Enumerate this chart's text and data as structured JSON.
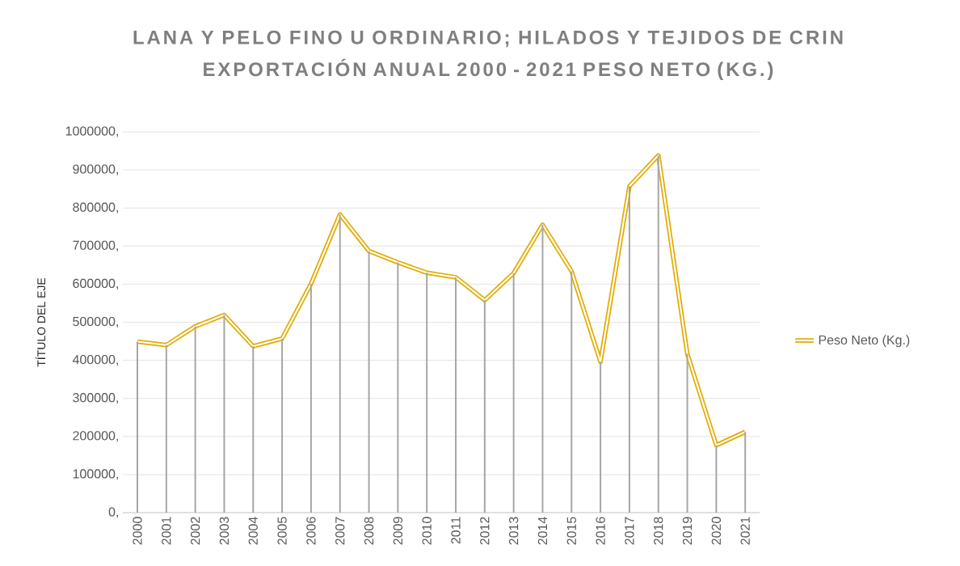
{
  "chart_data": {
    "type": "line",
    "title": "LANA Y PELO FINO U ORDINARIO; HILADOS Y TEJIDOS DE CRIN",
    "subtitle": "EXPORTACIÓN ANUAL 2000 - 2021 PESO NETO (KG.)",
    "ylabel": "TÍTULO DEL EJE",
    "categories": [
      "2000",
      "2001",
      "2002",
      "2003",
      "2004",
      "2005",
      "2006",
      "2007",
      "2008",
      "2009",
      "2010",
      "2011",
      "2012",
      "2013",
      "2014",
      "2015",
      "2016",
      "2017",
      "2018",
      "2019",
      "2020",
      "2021"
    ],
    "series": [
      {
        "name": "Peso Neto (Kg.)",
        "color": "#e3ac00",
        "values": [
          449000,
          440000,
          489000,
          519000,
          437000,
          457000,
          601000,
          783000,
          687000,
          657000,
          630000,
          618000,
          558000,
          629000,
          756000,
          634000,
          396000,
          857000,
          938000,
          417000,
          177000,
          212000
        ]
      },
      {
        "type": "bar",
        "color": "#a6a6a6",
        "values": [
          449000,
          440000,
          489000,
          519000,
          437000,
          457000,
          601000,
          783000,
          687000,
          657000,
          630000,
          618000,
          558000,
          629000,
          756000,
          634000,
          396000,
          857000,
          938000,
          417000,
          177000,
          212000
        ]
      }
    ],
    "ylim": [
      0,
      1000000
    ],
    "yticks": [
      {
        "value": 0,
        "label": "0,"
      },
      {
        "value": 100000,
        "label": "100000,"
      },
      {
        "value": 200000,
        "label": "200000,"
      },
      {
        "value": 300000,
        "label": "300000,"
      },
      {
        "value": 400000,
        "label": "400000,"
      },
      {
        "value": 500000,
        "label": "500000,"
      },
      {
        "value": 600000,
        "label": "600000,"
      },
      {
        "value": 700000,
        "label": "700000,"
      },
      {
        "value": 800000,
        "label": "800000,"
      },
      {
        "value": 900000,
        "label": "900000,"
      },
      {
        "value": 1000000,
        "label": "1000000,"
      }
    ],
    "grid": "y",
    "legend": "right",
    "marker": "none",
    "line_style": "solid"
  }
}
